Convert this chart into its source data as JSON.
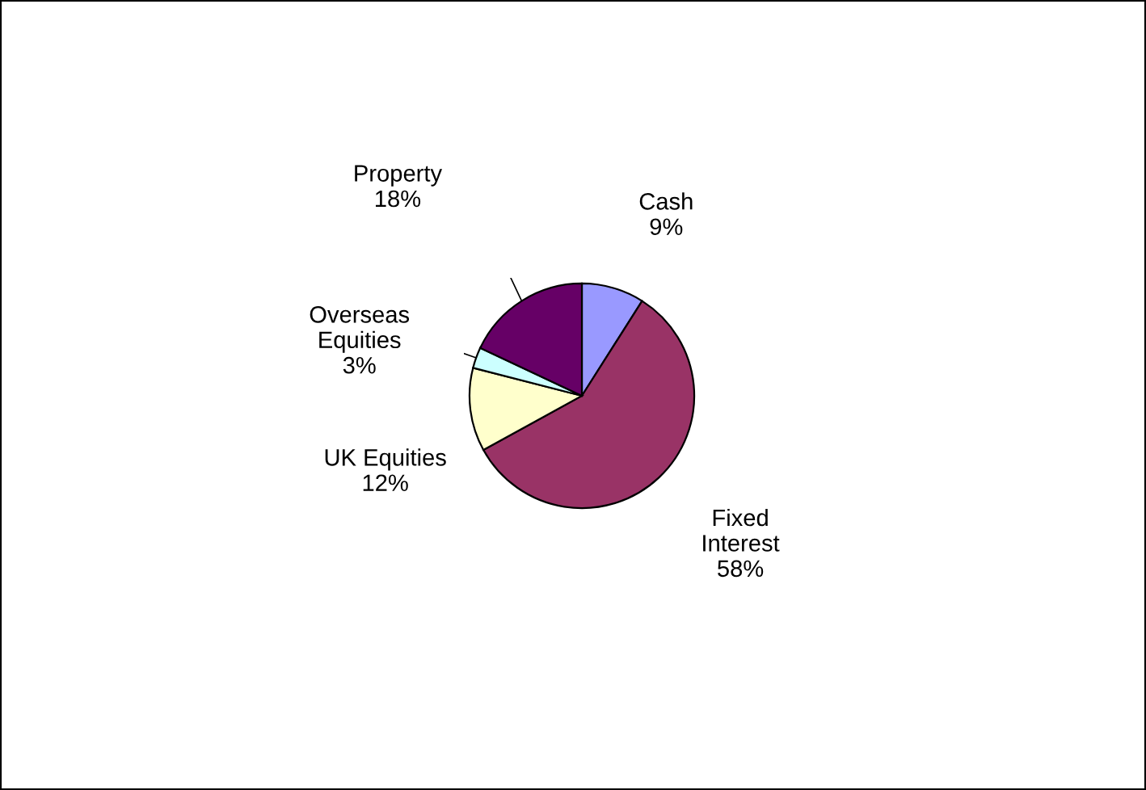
{
  "chart_data": {
    "type": "pie",
    "categories": [
      "Cash",
      "Fixed\nInterest",
      "UK Equities",
      "Overseas\nEquities",
      "Property"
    ],
    "values": [
      9,
      58,
      12,
      3,
      18
    ],
    "colors": [
      "#9999ff",
      "#993366",
      "#ffffcc",
      "#ccffff",
      "#660066"
    ],
    "value_labels": [
      "9%",
      "58%",
      "12%",
      "3%",
      "18%"
    ],
    "legend": false
  }
}
